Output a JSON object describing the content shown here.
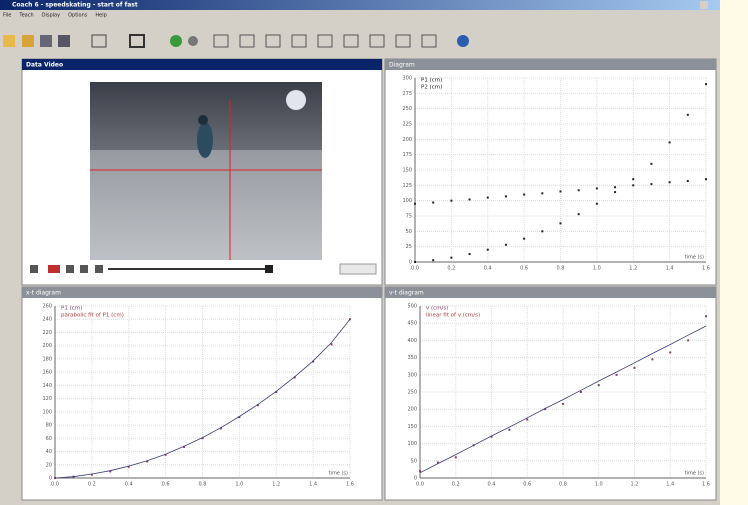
{
  "window": {
    "title": "Coach 6 - speedskating - start of fast",
    "menu": [
      "File",
      "Teach",
      "Display",
      "Options",
      "Help"
    ]
  },
  "panels": [
    "Data Video",
    "Diagram",
    "x-t diagram",
    "v-t diagram"
  ],
  "chart_data": [
    {
      "type": "scatter",
      "xlabel": "time (s)",
      "x": [
        0,
        0.1,
        0.2,
        0.3,
        0.4,
        0.5,
        0.6,
        0.7,
        0.8,
        0.9,
        1.0,
        1.1,
        1.2,
        1.3,
        1.4,
        1.5,
        1.6
      ],
      "xlim": [
        0,
        1.6
      ],
      "xticks": [
        {
          "value": 0,
          "label": "0.0"
        },
        0.2,
        0.4,
        0.6,
        0.8,
        {
          "value": 1,
          "label": "1.0"
        },
        1.2,
        1.4,
        1.6
      ],
      "ylim": [
        0,
        300
      ],
      "yticks": [
        0,
        25,
        50,
        75,
        100,
        125,
        150,
        175,
        200,
        225,
        250,
        275,
        300
      ],
      "grid": true,
      "series": [
        {
          "name": "P1 (cm)",
          "color": "#222222",
          "mode": "markers",
          "values": [
            95,
            97,
            100,
            102,
            105,
            107,
            110,
            112,
            115,
            117,
            120,
            122,
            125,
            127,
            130,
            132,
            135
          ]
        },
        {
          "name": "P2 (cm)",
          "color": "#222222",
          "mode": "markers",
          "values": [
            0,
            3,
            7,
            13,
            20,
            28,
            38,
            50,
            63,
            78,
            95,
            114,
            135,
            160,
            195,
            240,
            290
          ]
        }
      ]
    },
    {
      "type": "scatter",
      "xlabel": "time (s)",
      "x": [
        0,
        0.1,
        0.2,
        0.3,
        0.4,
        0.5,
        0.6,
        0.7,
        0.8,
        0.9,
        1.0,
        1.1,
        1.2,
        1.3,
        1.4,
        1.5,
        1.6
      ],
      "xlim": [
        0,
        1.6
      ],
      "xticks": [
        {
          "value": 0,
          "label": "0.0"
        },
        0.2,
        0.4,
        0.6,
        0.8,
        {
          "value": 1,
          "label": "1.0"
        },
        1.2,
        1.4,
        1.6
      ],
      "ylim": [
        0,
        260
      ],
      "yticks": [
        0,
        20,
        40,
        60,
        80,
        100,
        120,
        140,
        160,
        180,
        200,
        220,
        240,
        260
      ],
      "grid": true,
      "series": [
        {
          "name": "P1 (cm)",
          "color": "#8a3c6a",
          "mode": "markers",
          "values": [
            0,
            2,
            5,
            10,
            17,
            25,
            35,
            47,
            60,
            75,
            92,
            110,
            130,
            152,
            176,
            202,
            240
          ]
        },
        {
          "name": "parabolic fit of P1 (cm)",
          "color": "#b03a3a",
          "mode": "line",
          "values": [
            0,
            2,
            6,
            11,
            18,
            26,
            36,
            48,
            61,
            76,
            93,
            111,
            131,
            153,
            177,
            205,
            240
          ]
        }
      ]
    },
    {
      "type": "scatter",
      "xlabel": "time (s)",
      "x": [
        0,
        0.1,
        0.2,
        0.3,
        0.4,
        0.5,
        0.6,
        0.7,
        0.8,
        0.9,
        1.0,
        1.1,
        1.2,
        1.3,
        1.4,
        1.5,
        1.6
      ],
      "xlim": [
        0,
        1.6
      ],
      "xticks": [
        {
          "value": 0,
          "label": "0.0"
        },
        0.2,
        0.4,
        0.6,
        0.8,
        {
          "value": 1,
          "label": "1.0"
        },
        1.2,
        1.4,
        1.6
      ],
      "ylim": [
        0,
        500
      ],
      "yticks": [
        0,
        50,
        100,
        150,
        200,
        250,
        300,
        350,
        400,
        450,
        500
      ],
      "grid": true,
      "series": [
        {
          "name": "v (cm/s)",
          "color": "#8a3c6a",
          "mode": "markers",
          "values": [
            20,
            45,
            60,
            95,
            120,
            140,
            170,
            200,
            215,
            250,
            270,
            300,
            320,
            345,
            365,
            400,
            470
          ]
        },
        {
          "name": "linear fit of v (cm/s)",
          "color": "#b03a3a",
          "mode": "line",
          "values": [
            15,
            42,
            68,
            95,
            122,
            148,
            175,
            202,
            228,
            255,
            282,
            308,
            335,
            362,
            388,
            415,
            442
          ]
        }
      ]
    }
  ]
}
